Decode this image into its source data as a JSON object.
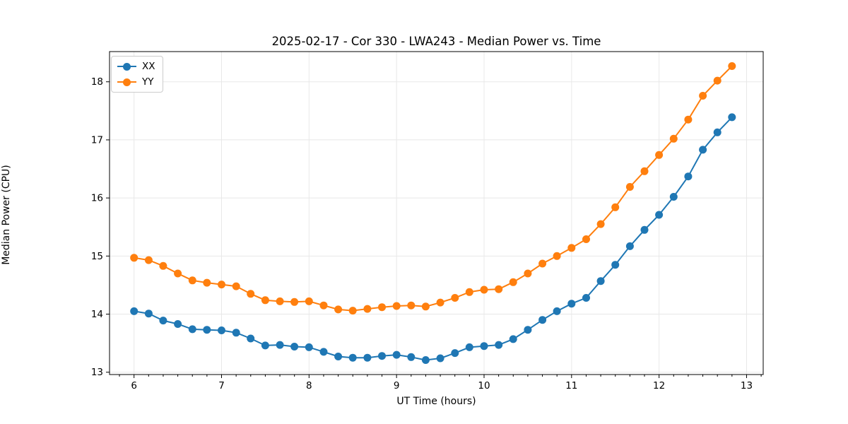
{
  "chart_data": {
    "type": "line",
    "title": "2025-02-17 - Cor 330 - LWA243 - Median Power vs. Time",
    "xlabel": "UT Time (hours)",
    "ylabel": "Median Power (CPU)",
    "legend": {
      "position": "upper-left",
      "entries": [
        "XX",
        "YY"
      ]
    },
    "axes": {
      "xlim": [
        5.72,
        13.19
      ],
      "ylim": [
        12.96,
        18.52
      ],
      "xticks": [
        6,
        7,
        8,
        9,
        10,
        11,
        12,
        13
      ],
      "xtick_labels": [
        "6",
        "7",
        "8",
        "9",
        "10",
        "11",
        "12",
        "13"
      ],
      "yticks": [
        13,
        14,
        15,
        16,
        17,
        18
      ],
      "ytick_labels": [
        "13",
        "14",
        "15",
        "16",
        "17",
        "18"
      ],
      "x_minor_tick_interval": 0.1667,
      "grid": true
    },
    "style": {
      "background": "#ffffff",
      "grid_color": "#e8e8e8",
      "axis_color": "#000000",
      "series_colors": [
        "#1f77b4",
        "#ff7f0e"
      ]
    },
    "x": [
      6.0,
      6.167,
      6.333,
      6.5,
      6.667,
      6.833,
      7.0,
      7.167,
      7.333,
      7.5,
      7.667,
      7.833,
      8.0,
      8.167,
      8.333,
      8.5,
      8.667,
      8.833,
      9.0,
      9.167,
      9.333,
      9.5,
      9.667,
      9.833,
      10.0,
      10.167,
      10.333,
      10.5,
      10.667,
      10.833,
      11.0,
      11.167,
      11.333,
      11.5,
      11.667,
      11.833,
      12.0,
      12.167,
      12.333,
      12.5,
      12.667,
      12.833
    ],
    "series": [
      {
        "name": "XX",
        "color": "#1f77b4",
        "marker": "circle",
        "values": [
          14.05,
          14.01,
          13.89,
          13.83,
          13.74,
          13.73,
          13.72,
          13.68,
          13.58,
          13.46,
          13.47,
          13.44,
          13.43,
          13.35,
          13.27,
          13.25,
          13.25,
          13.28,
          13.3,
          13.26,
          13.21,
          13.24,
          13.33,
          13.43,
          13.45,
          13.47,
          13.57,
          13.73,
          13.9,
          14.05,
          14.18,
          14.28,
          14.57,
          14.85,
          15.17,
          15.45,
          15.71,
          16.02,
          16.37,
          16.83,
          17.13,
          17.39
        ]
      },
      {
        "name": "YY",
        "color": "#ff7f0e",
        "marker": "circle",
        "values": [
          14.97,
          14.93,
          14.83,
          14.7,
          14.58,
          14.54,
          14.51,
          14.48,
          14.35,
          14.24,
          14.22,
          14.21,
          14.22,
          14.15,
          14.08,
          14.06,
          14.09,
          14.12,
          14.14,
          14.15,
          14.13,
          14.2,
          14.28,
          14.38,
          14.42,
          14.43,
          14.55,
          14.7,
          14.87,
          15.0,
          15.14,
          15.29,
          15.55,
          15.84,
          16.19,
          16.46,
          16.74,
          17.02,
          17.35,
          17.76,
          18.02,
          18.27
        ]
      }
    ]
  }
}
